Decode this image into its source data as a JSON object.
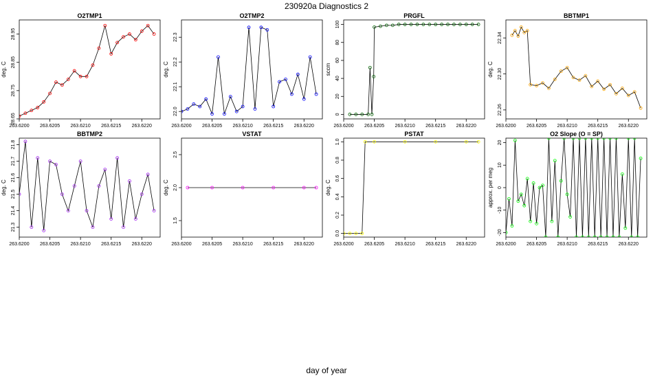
{
  "page": {
    "title": "230920a   Diagnostics 2",
    "xlabel": "day of year"
  },
  "colors": {
    "line": "#000000",
    "red": "#ff0000",
    "blue": "#0000ff",
    "green": "#006400",
    "orange": "#ffa500",
    "purple": "#a020f0",
    "magenta": "#ff00ff",
    "yellow": "#ffff00",
    "lime": "#00ff00"
  },
  "chart_data": [
    {
      "type": "line",
      "title": "O2TMP1",
      "ylabel": "deg. C",
      "color": "red",
      "xlim": [
        263.62,
        263.6223
      ],
      "xticks": [
        "263.6200",
        "263.6205",
        "263.6210",
        "263.6215",
        "263.6220"
      ],
      "ylim": [
        28.65,
        29.0
      ],
      "yticks": [
        "28.65",
        "28.75",
        "28.85",
        "28.95"
      ],
      "x": [
        263.62,
        263.6201,
        263.6202,
        263.6203,
        263.6204,
        263.6205,
        263.6206,
        263.6207,
        263.6208,
        263.6209,
        263.621,
        263.6211,
        263.6212,
        263.6213,
        263.6214,
        263.6215,
        263.6216,
        263.6217,
        263.6218,
        263.6219,
        263.622,
        263.6221,
        263.6222
      ],
      "y": [
        28.66,
        28.67,
        28.68,
        28.69,
        28.71,
        28.74,
        28.78,
        28.77,
        28.79,
        28.82,
        28.8,
        28.8,
        28.84,
        28.9,
        28.98,
        28.88,
        28.92,
        28.94,
        28.95,
        28.93,
        28.96,
        28.98,
        28.95
      ]
    },
    {
      "type": "line",
      "title": "O2TMP2",
      "ylabel": "deg. C",
      "color": "blue",
      "xlim": [
        263.62,
        263.6223
      ],
      "xticks": [
        "263.6200",
        "263.6205",
        "263.6210",
        "263.6215",
        "263.6220"
      ],
      "ylim": [
        21.97,
        22.37
      ],
      "yticks": [
        "22.0",
        "22.1",
        "22.2",
        "22.3"
      ],
      "x": [
        263.62,
        263.6201,
        263.6202,
        263.6203,
        263.6204,
        263.6205,
        263.6206,
        263.6207,
        263.6208,
        263.6209,
        263.621,
        263.6211,
        263.6212,
        263.6213,
        263.6214,
        263.6215,
        263.6216,
        263.6217,
        263.6218,
        263.6219,
        263.622,
        263.6221,
        263.6222
      ],
      "y": [
        22.0,
        22.01,
        22.03,
        22.02,
        22.05,
        21.99,
        22.22,
        21.99,
        22.06,
        22.0,
        22.02,
        22.34,
        22.01,
        22.34,
        22.33,
        22.02,
        22.12,
        22.13,
        22.07,
        22.15,
        22.05,
        22.22,
        22.07
      ]
    },
    {
      "type": "line",
      "title": "PRGFL",
      "ylabel": "sccm",
      "color": "green",
      "xlim": [
        263.62,
        263.6223
      ],
      "xticks": [
        "263.6200",
        "263.6205",
        "263.6210",
        "263.6215",
        "263.6220"
      ],
      "ylim": [
        -5,
        105
      ],
      "yticks": [
        "0",
        "20",
        "40",
        "60",
        "80",
        "100"
      ],
      "x": [
        263.6201,
        263.6202,
        263.6203,
        263.6204,
        263.62043,
        263.62046,
        263.62049,
        263.6205,
        263.6206,
        263.6207,
        263.6208,
        263.6209,
        263.621,
        263.6211,
        263.6212,
        263.6213,
        263.6214,
        263.6215,
        263.6216,
        263.6217,
        263.6218,
        263.6219,
        263.622,
        263.6221,
        263.6222
      ],
      "y": [
        0,
        0,
        0,
        0,
        52,
        0,
        42,
        97,
        98,
        99,
        99,
        100,
        100,
        100,
        100,
        100,
        100,
        100,
        100,
        100,
        100,
        100,
        100,
        100,
        100
      ]
    },
    {
      "type": "line",
      "title": "BBTMP1",
      "ylabel": "deg. C",
      "color": "orange",
      "xlim": [
        263.62,
        263.6223
      ],
      "xticks": [
        "263.6200",
        "263.6205",
        "263.6210",
        "263.6215",
        "263.6220"
      ],
      "ylim": [
        22.25,
        22.36
      ],
      "yticks": [
        "22.26",
        "22.30",
        "22.34"
      ],
      "x": [
        263.6201,
        263.62015,
        263.6202,
        263.62025,
        263.6203,
        263.62035,
        263.6204,
        263.6205,
        263.6206,
        263.6207,
        263.6208,
        263.6209,
        263.621,
        263.6211,
        263.6212,
        263.6213,
        263.6214,
        263.6215,
        263.6216,
        263.6217,
        263.6218,
        263.6219,
        263.622,
        263.6221,
        263.6222
      ],
      "y": [
        22.343,
        22.348,
        22.342,
        22.352,
        22.346,
        22.348,
        22.288,
        22.287,
        22.29,
        22.284,
        22.294,
        22.303,
        22.307,
        22.296,
        22.293,
        22.298,
        22.286,
        22.292,
        22.283,
        22.288,
        22.278,
        22.284,
        22.276,
        22.28,
        22.262
      ]
    },
    {
      "type": "line",
      "title": "BBTMP2",
      "ylabel": "deg. C",
      "color": "purple",
      "xlim": [
        263.62,
        263.6223
      ],
      "xticks": [
        "263.6200",
        "263.6205",
        "263.6210",
        "263.6215",
        "263.6220"
      ],
      "ylim": [
        21.24,
        21.84
      ],
      "yticks": [
        "21.3",
        "21.4",
        "21.5",
        "21.6",
        "21.7",
        "21.8"
      ],
      "x": [
        263.62,
        263.6201,
        263.6202,
        263.6203,
        263.6204,
        263.6205,
        263.6206,
        263.6207,
        263.6208,
        263.6209,
        263.621,
        263.6211,
        263.6212,
        263.6213,
        263.6214,
        263.6215,
        263.6216,
        263.6217,
        263.6218,
        263.6219,
        263.622,
        263.6221,
        263.6222
      ],
      "y": [
        21.5,
        21.82,
        21.3,
        21.72,
        21.28,
        21.7,
        21.68,
        21.5,
        21.4,
        21.55,
        21.7,
        21.4,
        21.3,
        21.55,
        21.65,
        21.35,
        21.72,
        21.3,
        21.58,
        21.35,
        21.5,
        21.62,
        21.4
      ]
    },
    {
      "type": "line",
      "title": "VSTAT",
      "ylabel": "deg. C",
      "color": "magenta",
      "xlim": [
        263.62,
        263.6223
      ],
      "xticks": [
        "263.6200",
        "263.6205",
        "263.6210",
        "263.6215",
        "263.6220"
      ],
      "ylim": [
        1.25,
        2.75
      ],
      "yticks": [
        "1.5",
        "2.0",
        "2.5"
      ],
      "x": [
        263.6201,
        263.6205,
        263.621,
        263.6215,
        263.622,
        263.6222
      ],
      "y": [
        2.0,
        2.0,
        2.0,
        2.0,
        2.0,
        2.0
      ]
    },
    {
      "type": "line",
      "title": "PSTAT",
      "ylabel": "deg. C",
      "color": "yellow",
      "xlim": [
        263.62,
        263.6223
      ],
      "xticks": [
        "263.6200",
        "263.6205",
        "263.6210",
        "263.6215",
        "263.6220"
      ],
      "ylim": [
        -0.04,
        1.04
      ],
      "yticks": [
        "0.0",
        "0.2",
        "0.4",
        "0.6",
        "0.8",
        "1.0"
      ],
      "x": [
        263.62,
        263.6201,
        263.6202,
        263.6203,
        263.62035,
        263.6205,
        263.621,
        263.6215,
        263.622,
        263.6222
      ],
      "y": [
        0,
        0,
        0,
        0,
        1,
        1,
        1,
        1,
        1,
        1
      ]
    },
    {
      "type": "line",
      "title": "O2 Slope (O = SP)",
      "ylabel": "approx. per meg",
      "color": "lime",
      "xlim": [
        263.62,
        263.6223
      ],
      "xticks": [
        "263.6200",
        "263.6205",
        "263.6210",
        "263.6215",
        "263.6220"
      ],
      "ylim": [
        -22,
        22
      ],
      "yticks": [
        "-20",
        "-10",
        "0",
        "10",
        "20"
      ],
      "x": [
        263.62,
        263.62005,
        263.6201,
        263.62015,
        263.6202,
        263.62025,
        263.6203,
        263.62035,
        263.6204,
        263.62045,
        263.6205,
        263.62055,
        263.6206,
        263.62065,
        263.6207,
        263.62075,
        263.6208,
        263.62085,
        263.6209,
        263.62095,
        263.621,
        263.62105,
        263.6211,
        263.62115,
        263.6212,
        263.62125,
        263.6213,
        263.62135,
        263.6214,
        263.62145,
        263.6215,
        263.62155,
        263.6216,
        263.62165,
        263.6217,
        263.62175,
        263.6218,
        263.62185,
        263.6219,
        263.62195,
        263.622,
        263.62205,
        263.6221,
        263.62215,
        263.6222
      ],
      "y": [
        -20,
        -5,
        -17,
        21,
        -6,
        -3,
        -8,
        4,
        -15,
        2,
        -16,
        0,
        1,
        -22,
        22,
        -15,
        12,
        -22,
        3,
        22,
        -3,
        -13,
        22,
        -22,
        22,
        -22,
        22,
        -22,
        22,
        -22,
        22,
        -22,
        22,
        -22,
        22,
        -22,
        22,
        -22,
        6,
        -18,
        22,
        -22,
        22,
        -22,
        13
      ]
    }
  ]
}
